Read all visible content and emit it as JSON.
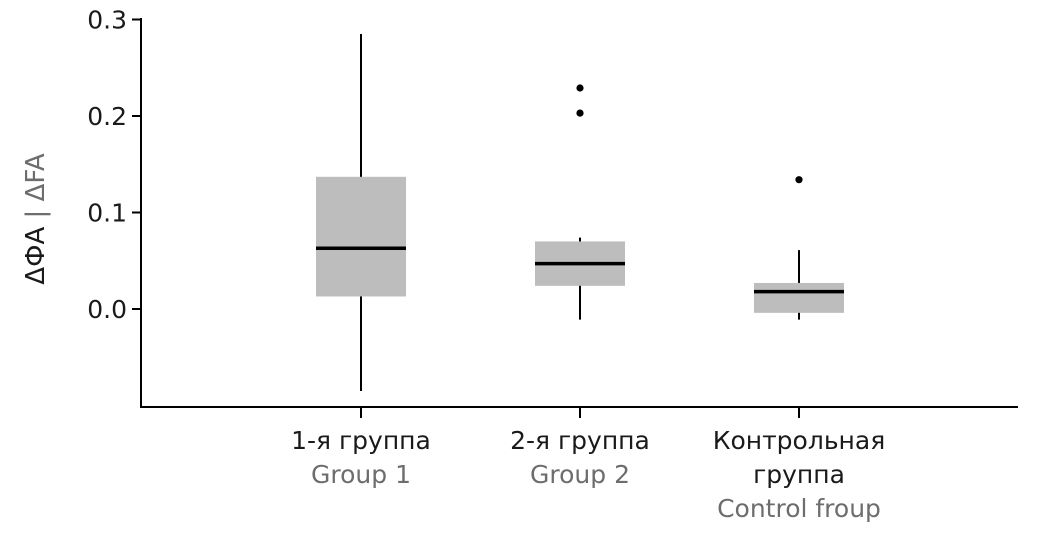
{
  "chart_data": {
    "type": "box",
    "ylabel": {
      "primary": "ΔФА",
      "separator": " | ",
      "secondary": "ΔFA"
    },
    "ylim": [
      -0.1,
      0.3
    ],
    "yticks": [
      {
        "value": 0.3,
        "label": "0.3"
      },
      {
        "value": 0.2,
        "label": "0.2"
      },
      {
        "value": 0.1,
        "label": "0.1"
      },
      {
        "value": 0.0,
        "label": "0.0"
      }
    ],
    "grid": false,
    "colors": {
      "box_fill": "#bdbdbd",
      "median": "#000000",
      "whisker": "#000000",
      "outlier": "#000000",
      "axis": "#000000"
    },
    "groups": [
      {
        "label_lines": [
          "1-я группа"
        ],
        "label_en_lines": [
          "Group 1"
        ],
        "whisker_low": -0.085,
        "q1": 0.013,
        "median": 0.063,
        "q3": 0.137,
        "whisker_high": 0.285,
        "outliers": []
      },
      {
        "label_lines": [
          "2-я группа"
        ],
        "label_en_lines": [
          "Group 2"
        ],
        "whisker_low": -0.011,
        "q1": 0.024,
        "median": 0.047,
        "q3": 0.07,
        "whisker_high": 0.074,
        "outliers": [
          0.203,
          0.229
        ]
      },
      {
        "label_lines": [
          "Контрольная",
          "группа"
        ],
        "label_en_lines": [
          "Control froup"
        ],
        "whisker_low": -0.011,
        "q1": -0.004,
        "median": 0.018,
        "q3": 0.027,
        "whisker_high": 0.061,
        "outliers": [
          0.134
        ]
      }
    ]
  }
}
